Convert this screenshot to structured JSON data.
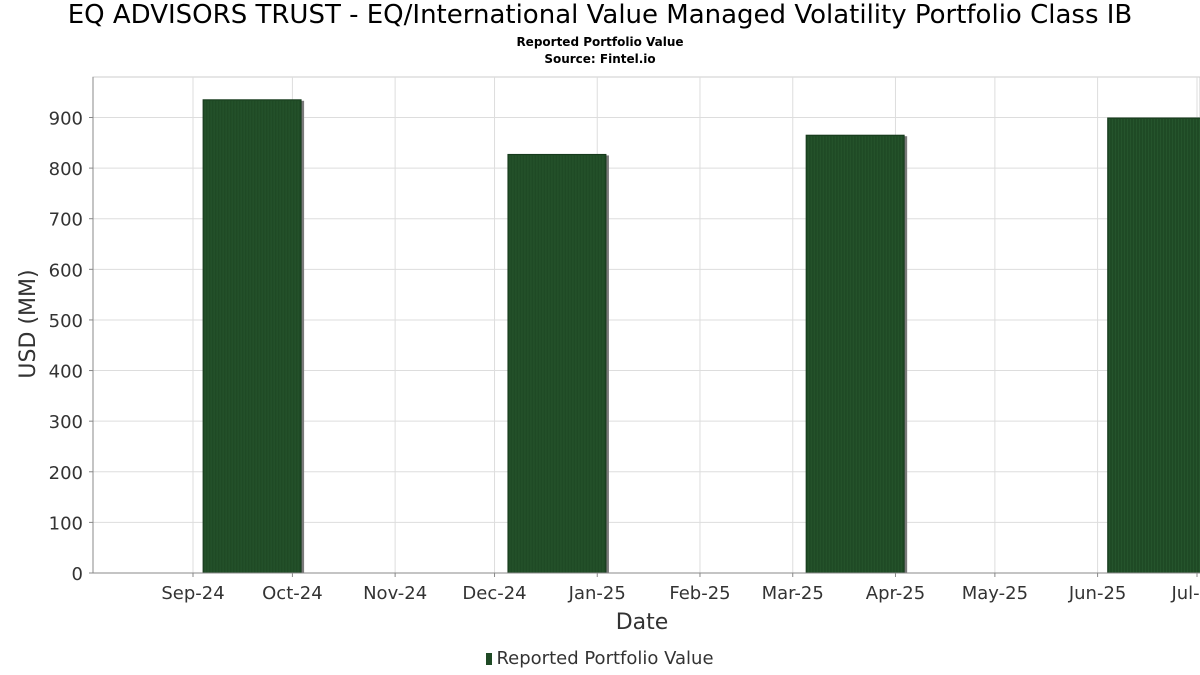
{
  "title": "EQ ADVISORS TRUST - EQ/International Value Managed Volatility Portfolio Class IB",
  "subtitle": "Reported Portfolio Value",
  "source": "Source: Fintel.io",
  "colors": {
    "bar": "#1f4a25",
    "bar_shadow": "#7a7a7a",
    "grid": "#dddddd",
    "axis": "#888888"
  },
  "chart_data": {
    "type": "bar",
    "title": "EQ ADVISORS TRUST - EQ/International Value Managed Volatility Portfolio Class IB",
    "subtitle": "Reported Portfolio Value",
    "xlabel": "Date",
    "ylabel": "USD (MM)",
    "ylim": [
      0,
      980
    ],
    "yticks": [
      0,
      100,
      200,
      300,
      400,
      500,
      600,
      700,
      800,
      900
    ],
    "xticks": [
      "Sep-24",
      "Oct-24",
      "Nov-24",
      "Dec-24",
      "Jan-25",
      "Feb-25",
      "Mar-25",
      "Apr-25",
      "May-25",
      "Jun-25",
      "Jul-25"
    ],
    "grid": true,
    "legend_position": "bottom-center",
    "series": [
      {
        "name": "Reported Portfolio Value",
        "points": [
          {
            "date": "2024-09-30",
            "value": 935
          },
          {
            "date": "2024-12-31",
            "value": 827
          },
          {
            "date": "2025-03-31",
            "value": 865
          },
          {
            "date": "2025-06-30",
            "value": 899
          }
        ]
      }
    ]
  }
}
